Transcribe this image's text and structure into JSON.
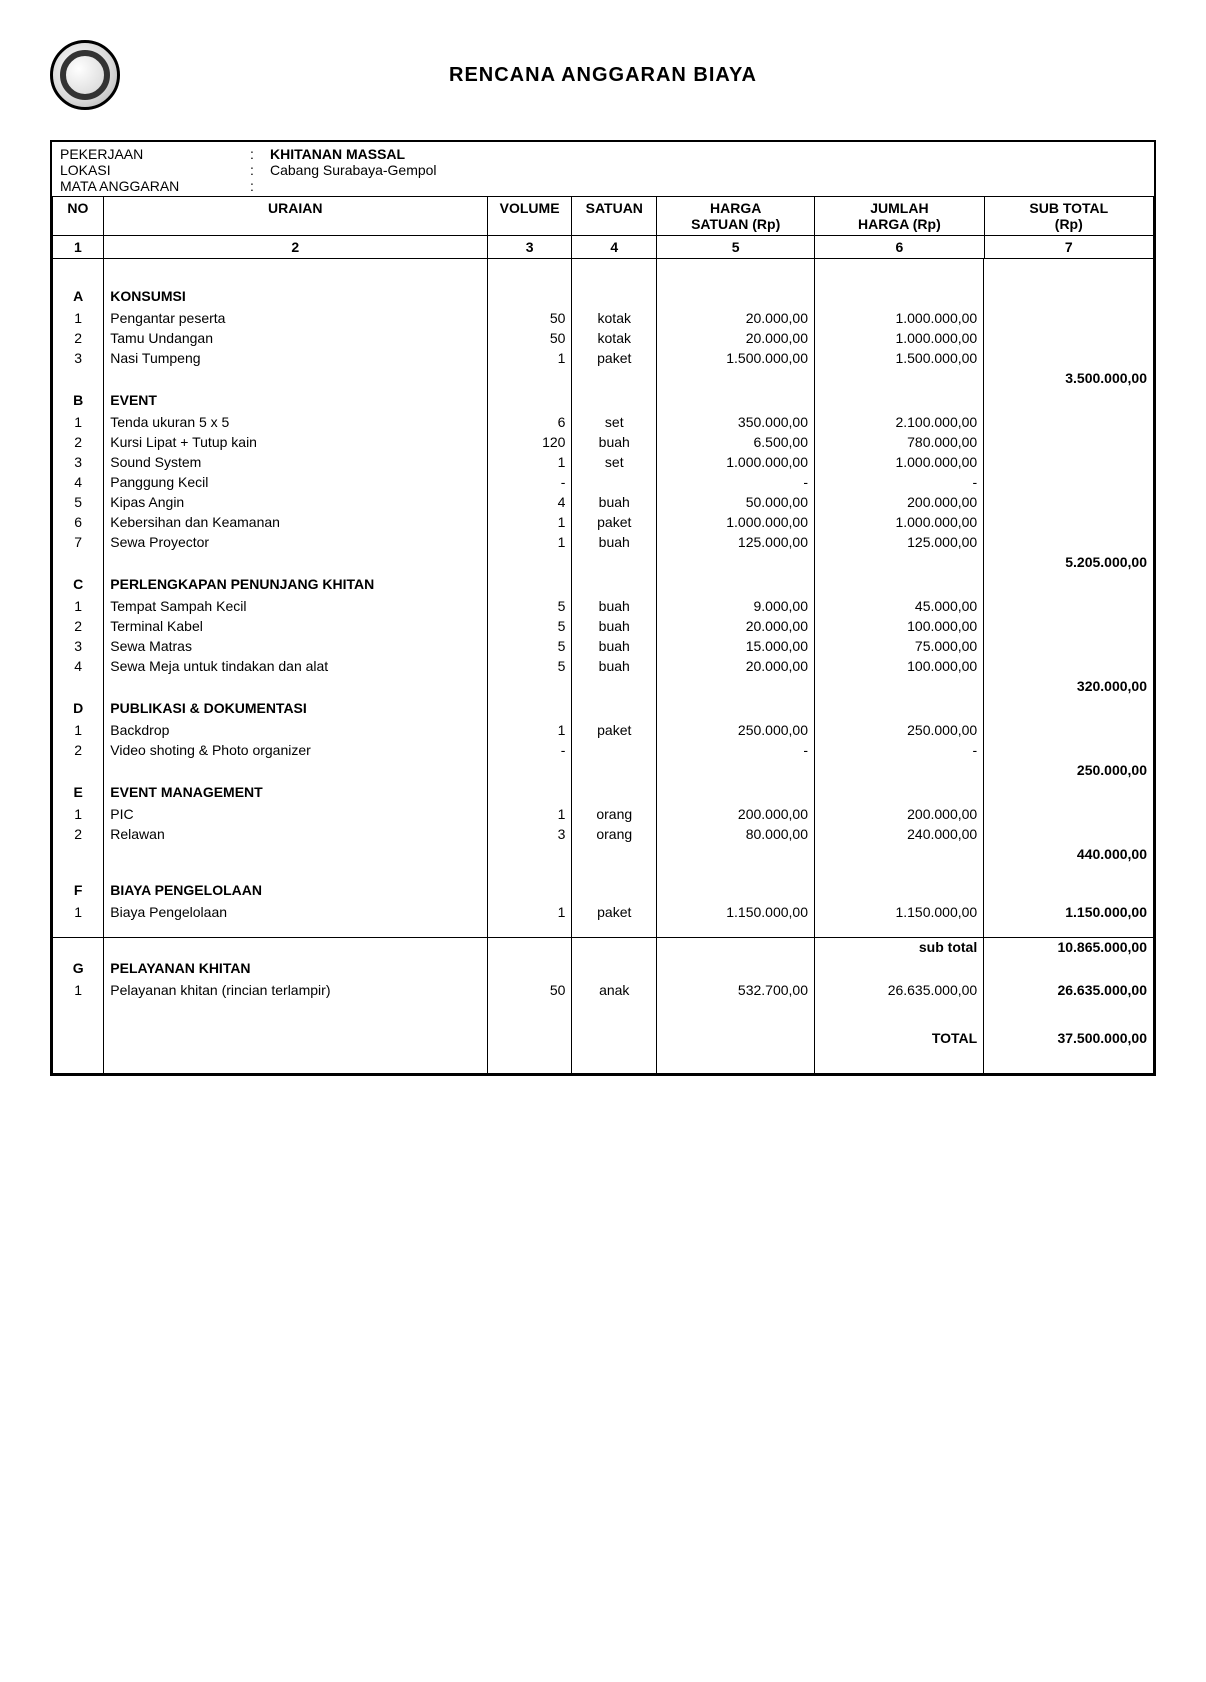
{
  "title": "RENCANA ANGGARAN  BIAYA",
  "meta": {
    "pekerjaan_label": "PEKERJAAN",
    "pekerjaan_value": "KHITANAN MASSAL",
    "lokasi_label": "LOKASI",
    "lokasi_value": "Cabang Surabaya-Gempol",
    "mata_label": "MATA ANGGARAN",
    "mata_value": ""
  },
  "headers": {
    "no": "NO",
    "uraian": "URAIAN",
    "volume": "VOLUME",
    "satuan": "SATUAN",
    "harga1": "HARGA",
    "harga2": "SATUAN  (Rp)",
    "jumlah1": "JUMLAH",
    "jumlah2": "HARGA  (Rp)",
    "sub1": "SUB TOTAL",
    "sub2": "(Rp)",
    "c1": "1",
    "c2": "2",
    "c3": "3",
    "c4": "4",
    "c5": "5",
    "c6": "6",
    "c7": "7"
  },
  "rows": [
    {
      "t": "spacer"
    },
    {
      "t": "spacer"
    },
    {
      "t": "section",
      "no": "A",
      "label": "KONSUMSI"
    },
    {
      "t": "item",
      "no": "1",
      "u": "Pengantar peserta",
      "v": "50",
      "s": "kotak",
      "hs": "20.000,00",
      "jh": "1.000.000,00",
      "st": ""
    },
    {
      "t": "item",
      "no": "2",
      "u": "Tamu Undangan",
      "v": "50",
      "s": "kotak",
      "hs": "20.000,00",
      "jh": "1.000.000,00",
      "st": ""
    },
    {
      "t": "item",
      "no": "3",
      "u": "Nasi Tumpeng",
      "v": "1",
      "s": "paket",
      "hs": "1.500.000,00",
      "jh": "1.500.000,00",
      "st": ""
    },
    {
      "t": "subtotal",
      "st": "3.500.000,00"
    },
    {
      "t": "section",
      "no": "B",
      "label": "EVENT"
    },
    {
      "t": "item",
      "no": "1",
      "u": "Tenda ukuran 5 x 5",
      "v": "6",
      "s": "set",
      "hs": "350.000,00",
      "jh": "2.100.000,00",
      "st": ""
    },
    {
      "t": "item",
      "no": "2",
      "u": "Kursi Lipat + Tutup kain",
      "v": "120",
      "s": "buah",
      "hs": "6.500,00",
      "jh": "780.000,00",
      "st": ""
    },
    {
      "t": "item",
      "no": "3",
      "u": "Sound System",
      "v": "1",
      "s": "set",
      "hs": "1.000.000,00",
      "jh": "1.000.000,00",
      "st": ""
    },
    {
      "t": "item",
      "no": "4",
      "u": "Panggung Kecil",
      "v": "-",
      "s": "",
      "hs": "-",
      "jh": "-",
      "st": ""
    },
    {
      "t": "item",
      "no": "5",
      "u": "Kipas Angin",
      "v": "4",
      "s": "buah",
      "hs": "50.000,00",
      "jh": "200.000,00",
      "st": ""
    },
    {
      "t": "item",
      "no": "6",
      "u": "Kebersihan dan Keamanan",
      "v": "1",
      "s": "paket",
      "hs": "1.000.000,00",
      "jh": "1.000.000,00",
      "st": ""
    },
    {
      "t": "item",
      "no": "7",
      "u": "Sewa Proyector",
      "v": "1",
      "s": "buah",
      "hs": "125.000,00",
      "jh": "125.000,00",
      "st": ""
    },
    {
      "t": "subtotal",
      "st": "5.205.000,00"
    },
    {
      "t": "section",
      "no": "C",
      "label": "PERLENGKAPAN PENUNJANG KHITAN"
    },
    {
      "t": "item",
      "no": "1",
      "u": "Tempat Sampah Kecil",
      "v": "5",
      "s": "buah",
      "hs": "9.000,00",
      "jh": "45.000,00",
      "st": ""
    },
    {
      "t": "item",
      "no": "2",
      "u": "Terminal Kabel",
      "v": "5",
      "s": "buah",
      "hs": "20.000,00",
      "jh": "100.000,00",
      "st": ""
    },
    {
      "t": "item",
      "no": "3",
      "u": "Sewa Matras",
      "v": "5",
      "s": "buah",
      "hs": "15.000,00",
      "jh": "75.000,00",
      "st": ""
    },
    {
      "t": "item",
      "no": "4",
      "u": "Sewa Meja untuk tindakan dan alat",
      "v": "5",
      "s": "buah",
      "hs": "20.000,00",
      "jh": "100.000,00",
      "st": ""
    },
    {
      "t": "subtotal",
      "st": "320.000,00"
    },
    {
      "t": "section",
      "no": "D",
      "label": "PUBLIKASI & DOKUMENTASI"
    },
    {
      "t": "item",
      "no": "1",
      "u": "Backdrop",
      "v": "1",
      "s": "paket",
      "hs": "250.000,00",
      "jh": "250.000,00",
      "st": ""
    },
    {
      "t": "item",
      "no": "2",
      "u": "Video shoting & Photo organizer",
      "v": "-",
      "s": "",
      "hs": "-",
      "jh": "-",
      "st": ""
    },
    {
      "t": "subtotal",
      "st": "250.000,00"
    },
    {
      "t": "section",
      "no": "E",
      "label": "EVENT MANAGEMENT"
    },
    {
      "t": "item",
      "no": "1",
      "u": "PIC",
      "v": "1",
      "s": "orang",
      "hs": "200.000,00",
      "jh": "200.000,00",
      "st": ""
    },
    {
      "t": "item",
      "no": "2",
      "u": "Relawan",
      "v": "3",
      "s": "orang",
      "hs": "80.000,00",
      "jh": "240.000,00",
      "st": ""
    },
    {
      "t": "subtotal",
      "st": "440.000,00"
    },
    {
      "t": "spacer"
    },
    {
      "t": "section",
      "no": "F",
      "label": "BIAYA PENGELOLAAN"
    },
    {
      "t": "item",
      "no": "1",
      "u": "Biaya Pengelolaan",
      "v": "1",
      "s": "paket",
      "hs": "1.150.000,00",
      "jh": "1.150.000,00",
      "st": "1.150.000,00"
    },
    {
      "t": "spacer"
    },
    {
      "t": "grand_sub",
      "label": "sub total",
      "st": "10.865.000,00"
    },
    {
      "t": "section",
      "no": "G",
      "label": "PELAYANAN KHITAN"
    },
    {
      "t": "item",
      "no": "1",
      "u": "Pelayanan khitan (rincian terlampir)",
      "v": "50",
      "s": "anak",
      "hs": "532.700,00",
      "jh": "26.635.000,00",
      "st": "26.635.000,00"
    },
    {
      "t": "spacer"
    },
    {
      "t": "spacer"
    }
  ],
  "total_label": "TOTAL",
  "total_value": "37.500.000,00",
  "colors": {
    "border": "#000000",
    "text": "#000000",
    "background": "#ffffff"
  },
  "font_size_pt": 10
}
